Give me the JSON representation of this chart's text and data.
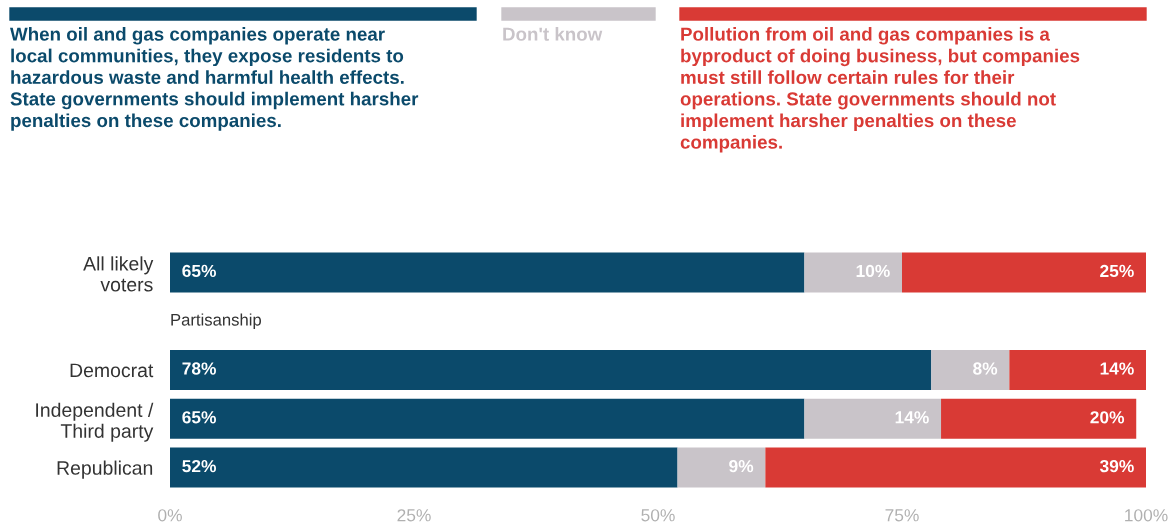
{
  "chart_data": {
    "type": "bar",
    "orientation": "horizontal",
    "stacked": true,
    "legend": "top",
    "categories": [
      "All likely\nvoters",
      null,
      "Democrat",
      "Independent /\nThird party",
      "Republican"
    ],
    "series": [
      {
        "name": "When oil and gas companies operate near\nlocal communities, they expose residents to\nhazardous waste and harmful health effects.\nState governments should implement harsher\npenalties on these companies.",
        "color": "#0b4a6b",
        "values": [
          65,
          null,
          78,
          65,
          52
        ],
        "value_labels": [
          "65%",
          null,
          "78%",
          "65%",
          "52%"
        ]
      },
      {
        "name": "Don't know",
        "color": "#c9c4c9",
        "values": [
          10,
          null,
          8,
          14,
          9
        ],
        "value_labels": [
          "10%",
          null,
          "8%",
          "14%",
          "9%"
        ]
      },
      {
        "name": "Pollution from oil and gas companies is a\nbyproduct of doing business, but companies\nmust still follow certain rules for their\noperations. State governments should not\nimplement harsher penalties on these\ncompanies.",
        "color": "#d93a35",
        "values": [
          25,
          null,
          14,
          20,
          39
        ],
        "value_labels": [
          "25%",
          null,
          "14%",
          "20%",
          "39%"
        ]
      }
    ],
    "annotations": [
      "Partisanship"
    ],
    "xlim": [
      0,
      100
    ],
    "xticks": [
      {
        "value": 0,
        "label": "0%"
      },
      {
        "value": 25,
        "label": "25%"
      },
      {
        "value": 50,
        "label": "50%"
      },
      {
        "value": 75,
        "label": "75%"
      },
      {
        "value": 100,
        "label": "100%"
      }
    ],
    "grid": false
  }
}
